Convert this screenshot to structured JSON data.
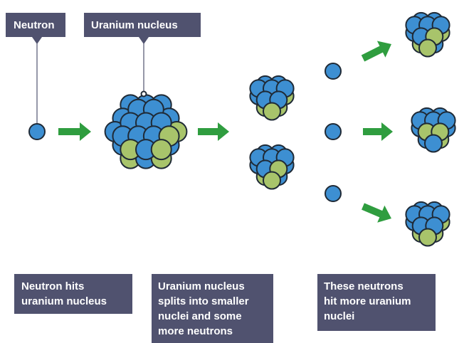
{
  "labels": {
    "neutron": "Neutron",
    "uranium": "Uranium nucleus"
  },
  "captions": [
    [
      "Neutron hits",
      "uranium nucleus"
    ],
    [
      "Uranium nucleus",
      "splits into smaller",
      "nuclei and some",
      "more neutrons"
    ],
    [
      "These neutrons",
      "hit more uranium",
      "nuclei"
    ]
  ]
}
